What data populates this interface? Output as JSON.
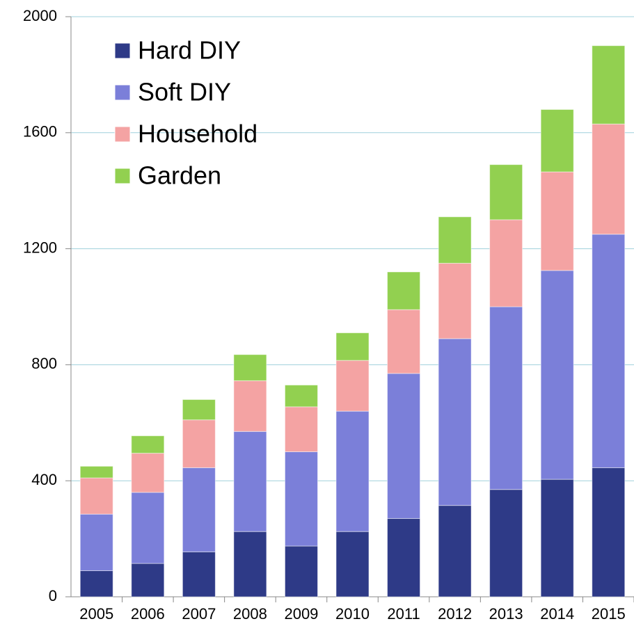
{
  "chart_data": {
    "type": "stacked_bar",
    "categories": [
      "2005",
      "2006",
      "2007",
      "2008",
      "2009",
      "2010",
      "2011",
      "2012",
      "2013",
      "2014",
      "2015"
    ],
    "series": [
      {
        "name": "Hard DIY",
        "color": "#2e3a87",
        "values": [
          90,
          115,
          155,
          225,
          175,
          225,
          270,
          315,
          370,
          405,
          445
        ]
      },
      {
        "name": "Soft DIY",
        "color": "#7b7fd9",
        "values": [
          195,
          245,
          290,
          345,
          325,
          415,
          500,
          575,
          630,
          720,
          805
        ]
      },
      {
        "name": "Household",
        "color": "#f4a3a3",
        "values": [
          125,
          135,
          165,
          175,
          155,
          175,
          220,
          260,
          300,
          340,
          380
        ]
      },
      {
        "name": "Garden",
        "color": "#92d050",
        "values": [
          40,
          60,
          70,
          90,
          75,
          95,
          130,
          160,
          190,
          215,
          270
        ]
      }
    ],
    "ylim": [
      0,
      2000
    ],
    "yticks": [
      0,
      400,
      800,
      1200,
      1600,
      2000
    ],
    "grid": true,
    "legend": "top-left"
  }
}
